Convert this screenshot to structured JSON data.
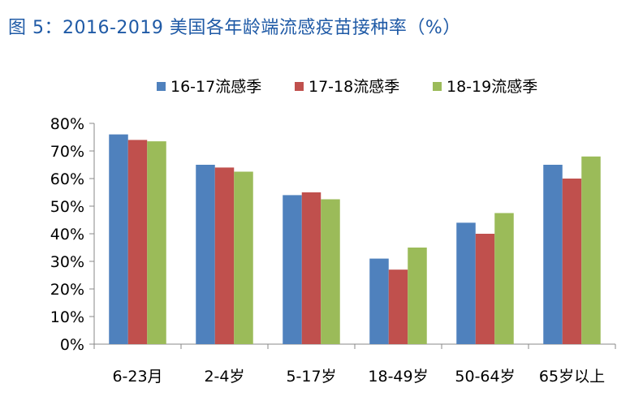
{
  "figure_title": "图 5：2016-2019 美国各年龄端流感疫苗接种率（%）",
  "chart_data": {
    "type": "bar",
    "categories": [
      "6-23月",
      "2-4岁",
      "5-17岁",
      "18-49岁",
      "50-64岁",
      "65岁以上"
    ],
    "series": [
      {
        "name": "16-17流感季",
        "color": "#4f81bd",
        "values": [
          76,
          65,
          54,
          31,
          44,
          65
        ]
      },
      {
        "name": "17-18流感季",
        "color": "#c0504d",
        "values": [
          74,
          64,
          55,
          27,
          40,
          60
        ]
      },
      {
        "name": "18-19流感季",
        "color": "#9bbb59",
        "values": [
          73.5,
          62.5,
          52.5,
          35,
          47.5,
          68
        ]
      }
    ],
    "ylim": [
      0,
      80
    ],
    "yticks": [
      0,
      10,
      20,
      30,
      40,
      50,
      60,
      70,
      80
    ],
    "ytick_labels": [
      "0%",
      "10%",
      "20%",
      "30%",
      "40%",
      "50%",
      "60%",
      "70%",
      "80%"
    ],
    "legend_position": "top",
    "grid": false
  }
}
